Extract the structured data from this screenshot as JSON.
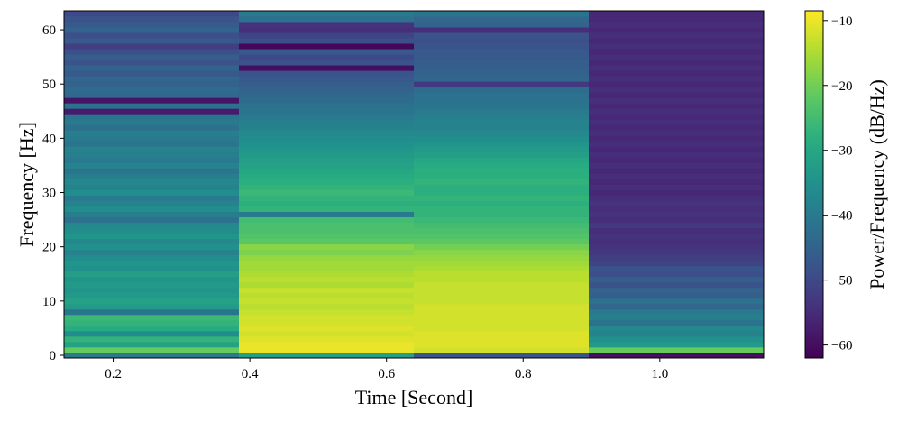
{
  "chart_data": {
    "type": "heatmap",
    "subtype": "spectrogram",
    "xlabel": "Time [Second]",
    "ylabel": "Frequency [Hz]",
    "colorbar_label": "Power/Frequency (dB/Hz)",
    "colormap": "viridis",
    "xlim": [
      0.128,
      1.152
    ],
    "ylim": [
      -0.5,
      63.5
    ],
    "clim": [
      -62,
      -8.5
    ],
    "x_ticks": [
      0.2,
      0.4,
      0.6,
      0.8,
      1.0
    ],
    "x_tick_labels": [
      "0.2",
      "0.4",
      "0.6",
      "0.8",
      "1.0"
    ],
    "y_ticks": [
      0,
      10,
      20,
      30,
      40,
      50,
      60
    ],
    "y_tick_labels": [
      "0",
      "10",
      "20",
      "30",
      "40",
      "50",
      "60"
    ],
    "colorbar_ticks": [
      -10,
      -20,
      -30,
      -40,
      -50,
      -60
    ],
    "colorbar_tick_labels": [
      "−10",
      "−20",
      "−30",
      "−40",
      "−50",
      "−60"
    ],
    "time_bins": [
      {
        "start": 0.128,
        "end": 0.384
      },
      {
        "start": 0.384,
        "end": 0.64
      },
      {
        "start": 0.64,
        "end": 0.896
      },
      {
        "start": 0.896,
        "end": 1.152
      }
    ],
    "frequency_bins": [
      0,
      1,
      2,
      3,
      4,
      5,
      6,
      7,
      8,
      9,
      10,
      11,
      12,
      13,
      14,
      15,
      16,
      17,
      18,
      19,
      20,
      21,
      22,
      23,
      24,
      25,
      26,
      27,
      28,
      29,
      30,
      31,
      32,
      33,
      34,
      35,
      36,
      37,
      38,
      39,
      40,
      41,
      42,
      43,
      44,
      45,
      46,
      47,
      48,
      49,
      50,
      51,
      52,
      53,
      54,
      55,
      56,
      57,
      58,
      59,
      60,
      61,
      62,
      63
    ],
    "power_db": [
      [
        -40,
        -21,
        -31,
        -27,
        -36,
        -29,
        -27,
        -26,
        -41,
        -33,
        -31,
        -33,
        -34,
        -33,
        -34,
        -32,
        -35,
        -34,
        -36,
        -38,
        -35,
        -37,
        -34,
        -36,
        -37,
        -42,
        -39,
        -36,
        -38,
        -40,
        -36,
        -38,
        -37,
        -39,
        -41,
        -38,
        -40,
        -39,
        -38,
        -41,
        -40,
        -39,
        -42,
        -40,
        -41,
        -58,
        -42,
        -59,
        -44,
        -43,
        -45,
        -44,
        -47,
        -45,
        -48,
        -46,
        -49,
        -52,
        -47,
        -49,
        -45,
        -47,
        -48,
        -50
      ],
      [
        -32,
        -10,
        -10,
        -11,
        -12,
        -11,
        -12,
        -12,
        -13,
        -14,
        -13,
        -14,
        -13,
        -15,
        -14,
        -15,
        -16,
        -16,
        -17,
        -19,
        -18,
        -22,
        -23,
        -24,
        -24,
        -25,
        -40,
        -27,
        -28,
        -27,
        -26,
        -27,
        -28,
        -29,
        -30,
        -31,
        -32,
        -33,
        -34,
        -35,
        -36,
        -37,
        -38,
        -39,
        -40,
        -41,
        -42,
        -43,
        -44,
        -45,
        -46,
        -47,
        -48,
        -60,
        -48,
        -50,
        -47,
        -61,
        -49,
        -51,
        -55,
        -54,
        -42,
        -40
      ],
      [
        -48,
        -12,
        -11,
        -11,
        -11,
        -12,
        -12,
        -12,
        -12,
        -12,
        -13,
        -13,
        -13,
        -13,
        -14,
        -14,
        -15,
        -16,
        -17,
        -18,
        -20,
        -22,
        -23,
        -24,
        -25,
        -26,
        -27,
        -27,
        -28,
        -27,
        -28,
        -28,
        -27,
        -28,
        -28,
        -29,
        -30,
        -32,
        -33,
        -34,
        -36,
        -37,
        -38,
        -38,
        -39,
        -40,
        -41,
        -42,
        -42,
        -43,
        -53,
        -44,
        -45,
        -46,
        -46,
        -47,
        -47,
        -48,
        -49,
        -48,
        -55,
        -45,
        -44,
        -41
      ],
      [
        -60,
        -21,
        -33,
        -35,
        -38,
        -37,
        -42,
        -39,
        -40,
        -44,
        -42,
        -46,
        -45,
        -48,
        -46,
        -49,
        -48,
        -51,
        -52,
        -53,
        -54,
        -55,
        -54,
        -55,
        -53,
        -55,
        -54,
        -55,
        -54,
        -55,
        -56,
        -55,
        -56,
        -55,
        -56,
        -55,
        -56,
        -55,
        -56,
        -55,
        -56,
        -55,
        -56,
        -55,
        -56,
        -55,
        -56,
        -55,
        -56,
        -55,
        -56,
        -55,
        -56,
        -55,
        -56,
        -55,
        -56,
        -55,
        -56,
        -55,
        -56,
        -55,
        -56,
        -56
      ]
    ]
  }
}
